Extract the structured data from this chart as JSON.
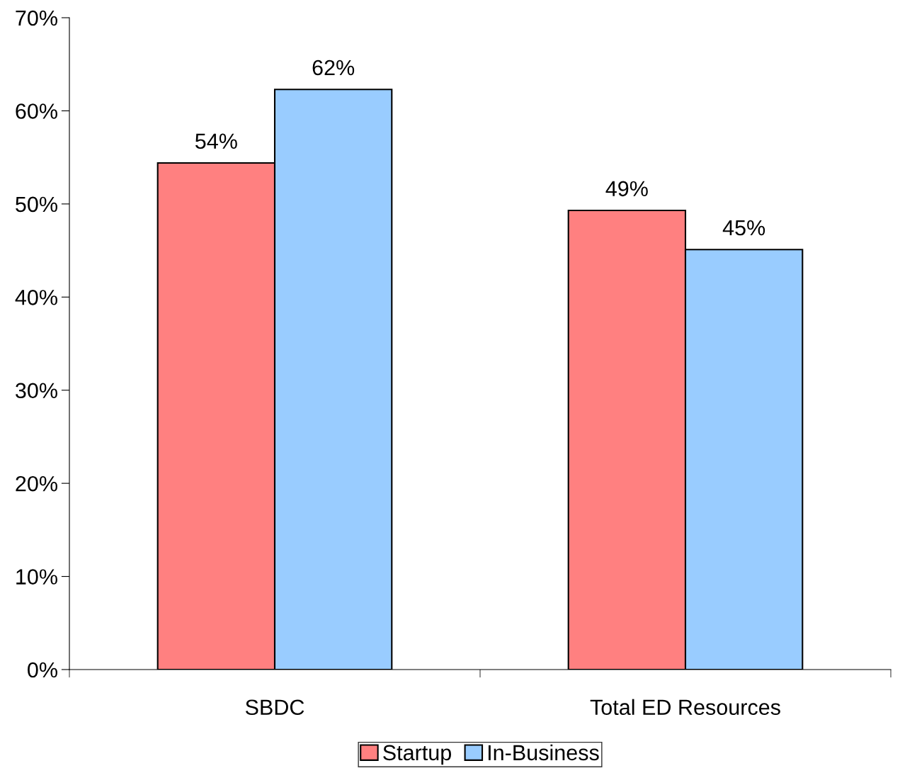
{
  "chart_data": {
    "type": "bar",
    "categories": [
      "SBDC",
      "Total ED Resources"
    ],
    "series": [
      {
        "name": "Startup",
        "color": "#ff8080",
        "values": [
          54.4,
          49.3
        ],
        "value_labels": [
          "54%",
          "49%"
        ]
      },
      {
        "name": "In-Business",
        "color": "#99ccff",
        "values": [
          62.3,
          45.1
        ],
        "value_labels": [
          "62%",
          "45%"
        ]
      }
    ],
    "ylim": [
      0,
      70
    ],
    "yticks": [
      {
        "value": 0,
        "label": "0%"
      },
      {
        "value": 10,
        "label": "10%"
      },
      {
        "value": 20,
        "label": "20%"
      },
      {
        "value": 30,
        "label": "30%"
      },
      {
        "value": 40,
        "label": "40%"
      },
      {
        "value": 50,
        "label": "50%"
      },
      {
        "value": 60,
        "label": "60%"
      },
      {
        "value": 70,
        "label": "70%"
      }
    ],
    "grid": false,
    "legend": "bottom"
  }
}
